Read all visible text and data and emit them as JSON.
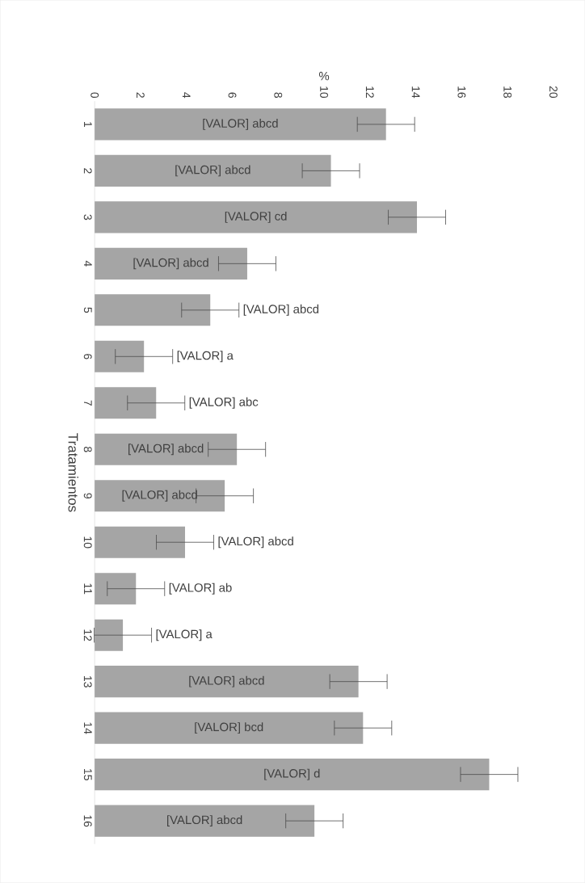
{
  "chart_data": {
    "type": "bar",
    "orientation": "horizontal",
    "xlabel": "%",
    "ylabel": "Tratamientos",
    "categories": [
      "1",
      "2",
      "3",
      "4",
      "5",
      "6",
      "7",
      "8",
      "9",
      "10",
      "11",
      "12",
      "13",
      "14",
      "15",
      "16"
    ],
    "values": [
      12.7,
      10.3,
      14.05,
      6.65,
      5.04,
      2.15,
      2.68,
      6.2,
      5.67,
      3.94,
      1.8,
      1.23,
      11.5,
      11.7,
      17.2,
      9.58
    ],
    "errors": [
      1.25,
      1.25,
      1.25,
      1.25,
      1.25,
      1.25,
      1.25,
      1.25,
      1.25,
      1.25,
      1.25,
      1.25,
      1.25,
      1.25,
      1.25,
      1.25
    ],
    "value_labels": [
      "[VALOR] abcd",
      "[VALOR] abcd",
      "[VALOR] cd",
      "[VALOR] abcd",
      "[VALOR] abcd",
      "[VALOR] a",
      "[VALOR] abc",
      "[VALOR] abcd",
      "[VALOR] abcd",
      "[VALOR] abcd",
      "[VALOR] ab",
      "[VALOR] a",
      "[VALOR] abcd",
      "[VALOR] bcd",
      "[VALOR] d",
      "[VALOR] abcd"
    ],
    "color": "#a5a5a5",
    "xlim": [
      0,
      20
    ],
    "xticks": [
      0,
      2,
      4,
      6,
      8,
      10,
      12,
      14,
      16,
      18,
      20
    ]
  }
}
